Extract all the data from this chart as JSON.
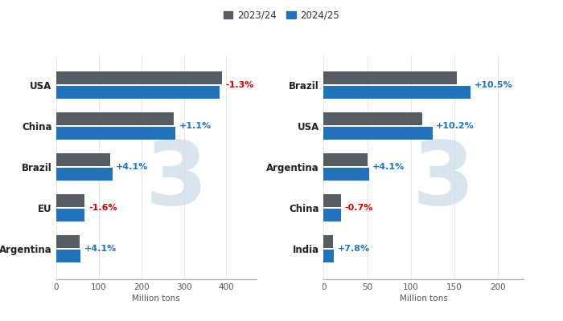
{
  "corn": {
    "categories": [
      "USA",
      "China",
      "Brazil",
      "EU",
      "Argentina"
    ],
    "values_2324": [
      389,
      277,
      127,
      67,
      55
    ],
    "values_2425": [
      384,
      280,
      132,
      66,
      57
    ],
    "changes": [
      "-1.3%",
      "+1.1%",
      "+4.1%",
      "-1.6%",
      "+4.1%"
    ],
    "change_colors": [
      "#cc0000",
      "#2272b9",
      "#2272b9",
      "#cc0000",
      "#2272b9"
    ],
    "xlabel": "Million tons",
    "xlim": [
      0,
      470
    ]
  },
  "soy": {
    "categories": [
      "Brazil",
      "USA",
      "Argentina",
      "China",
      "India"
    ],
    "values_2324": [
      153,
      113,
      50,
      20,
      11
    ],
    "values_2425": [
      169,
      125,
      52,
      20,
      12
    ],
    "changes": [
      "+10.5%",
      "+10.2%",
      "+4.1%",
      "-0.7%",
      "+7.8%"
    ],
    "change_colors": [
      "#2272b9",
      "#2272b9",
      "#2272b9",
      "#cc0000",
      "#2272b9"
    ],
    "xlabel": "Million tons",
    "xlim": [
      0,
      230
    ]
  },
  "color_2324": "#555d62",
  "color_2425": "#2272b9",
  "bar_height": 0.32,
  "bar_gap": 0.04,
  "legend_labels": [
    "2023/24",
    "2024/25"
  ],
  "background_color": "#ffffff",
  "watermark_color": "#c9d9e8",
  "watermark_alpha": 0.7
}
